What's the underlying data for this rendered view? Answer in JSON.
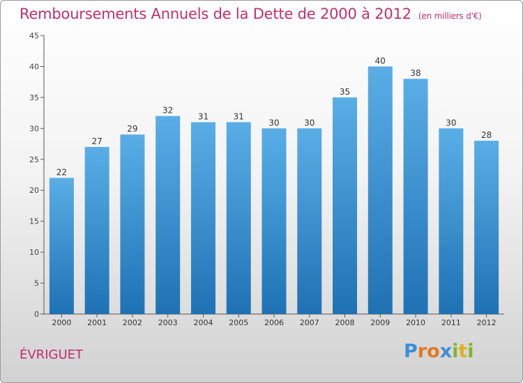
{
  "title": "Remboursements Annuels de la Dette de 2000 à 2012",
  "unit": "(en milliers d'€)",
  "place": "ÉVRIGUET",
  "logo": {
    "letters": [
      "P",
      "r",
      "o",
      "x",
      "i",
      "t",
      "i"
    ],
    "colors": [
      "#3a8fd8",
      "#e07a1f",
      "#e07a1f",
      "#3a8fd8",
      "#7fb52c",
      "#e0b020",
      "#7fb52c"
    ]
  },
  "colors": {
    "title": "#c0306a",
    "bar_top": "#5aaee6",
    "bar_bottom": "#1e72b4"
  },
  "chart_data": {
    "type": "bar",
    "title": "Remboursements Annuels de la Dette de 2000 à 2012",
    "xlabel": "",
    "ylabel": "",
    "categories": [
      "2000",
      "2001",
      "2002",
      "2003",
      "2004",
      "2005",
      "2006",
      "2007",
      "2008",
      "2009",
      "2010",
      "2011",
      "2012"
    ],
    "values": [
      22,
      27,
      29,
      32,
      31,
      31,
      30,
      30,
      35,
      40,
      38,
      30,
      28
    ],
    "ylim": [
      0,
      45
    ],
    "yticks": [
      0,
      5,
      10,
      15,
      20,
      25,
      30,
      35,
      40,
      45
    ],
    "grid": false
  }
}
